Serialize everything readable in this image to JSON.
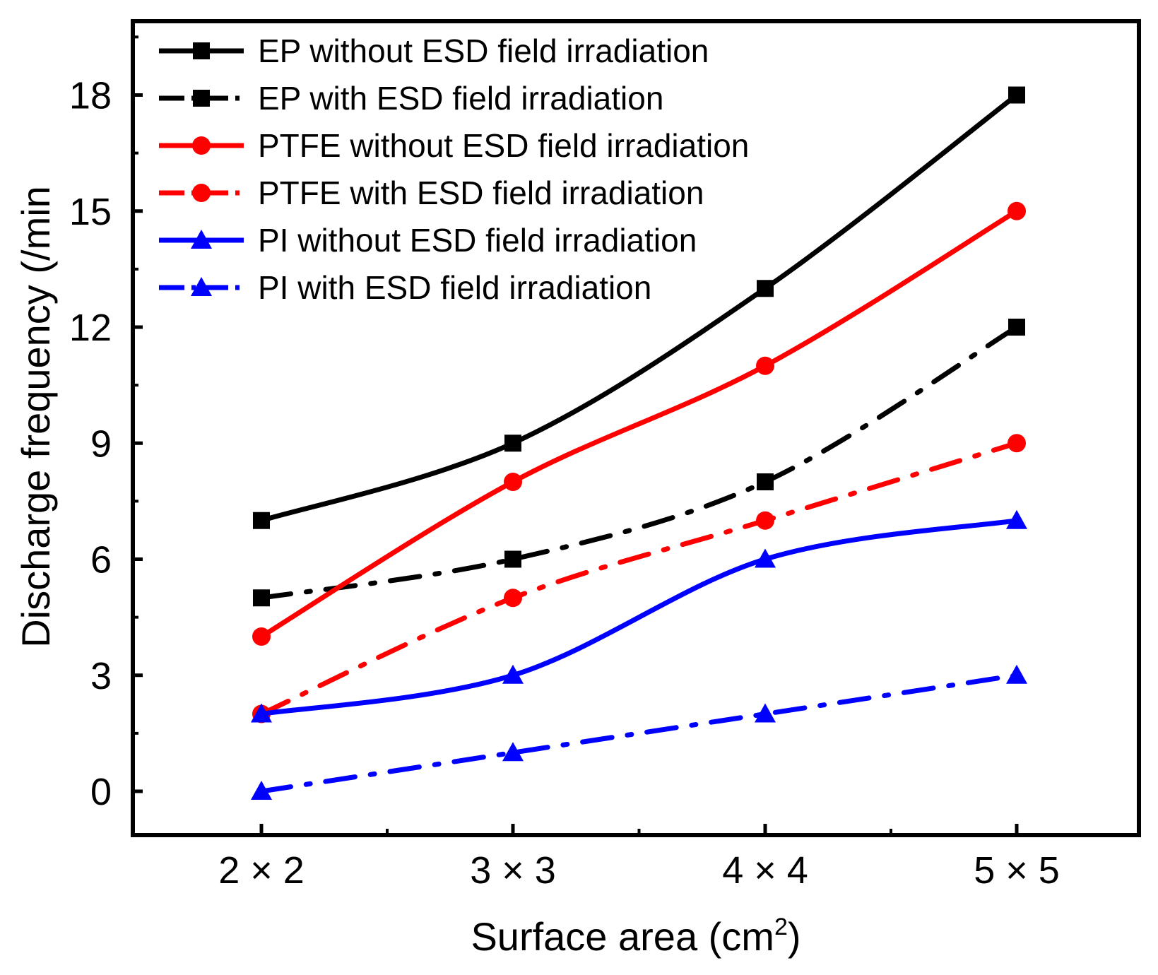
{
  "chart_data": {
    "type": "line",
    "title": "",
    "xlabel": "Surface area (cm",
    "xlabel_sup": "2",
    "xlabel_tail": ")",
    "ylabel": "Discharge frequency (/min",
    "categories": [
      "2 × 2",
      "3 × 3",
      "4 × 4",
      "5 × 5"
    ],
    "ylim": [
      -1,
      20
    ],
    "yticks": [
      0,
      3,
      6,
      9,
      12,
      15,
      18
    ],
    "grid": false,
    "legend_position": "top-left",
    "series": [
      {
        "name": "EP without ESD field irradiation",
        "values": [
          7,
          9,
          13,
          18
        ],
        "color": "#000000",
        "marker": "square",
        "dash": "solid"
      },
      {
        "name": "EP with ESD field irradiation",
        "values": [
          5,
          6,
          8,
          12
        ],
        "color": "#000000",
        "marker": "square",
        "dash": "dashdot"
      },
      {
        "name": "PTFE without ESD field irradiation",
        "values": [
          4,
          8,
          11,
          15
        ],
        "color": "#ff0000",
        "marker": "circle",
        "dash": "solid"
      },
      {
        "name": "PTFE with ESD field irradiation",
        "values": [
          2,
          5,
          7,
          9
        ],
        "color": "#ff0000",
        "marker": "circle",
        "dash": "dashdot"
      },
      {
        "name": "PI without ESD field irradiation",
        "values": [
          2,
          3,
          6,
          7
        ],
        "color": "#0000ff",
        "marker": "triangle",
        "dash": "solid"
      },
      {
        "name": "PI with ESD field irradiation",
        "values": [
          0,
          1,
          2,
          3
        ],
        "color": "#0000ff",
        "marker": "triangle",
        "dash": "dashdot"
      }
    ]
  }
}
